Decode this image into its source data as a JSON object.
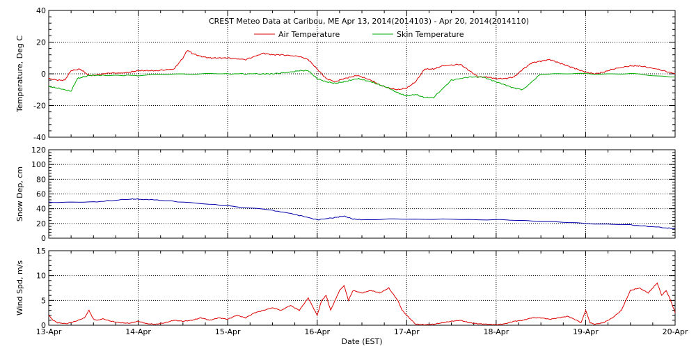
{
  "chart_data": {
    "type": "line",
    "title": "CREST Meteo Data at Caribou, ME   Apr 13, 2014(2014103) - Apr 20, 2014(2014110)",
    "xlabel": "Date (EST)",
    "x_ticks": [
      "13-Apr",
      "14-Apr",
      "15-Apr",
      "16-Apr",
      "17-Apr",
      "18-Apr",
      "19-Apr",
      "20-Apr"
    ],
    "grid": true,
    "panels": [
      {
        "id": "temperature",
        "ylabel": "Temperature, Deg C",
        "ylim": [
          -40,
          40
        ],
        "yticks": [
          -40,
          -20,
          0,
          20,
          40
        ],
        "legend_placement": "top-center",
        "series": [
          {
            "name": "Air Temperature",
            "color": "#dd0000",
            "x": [
              0,
              0.1,
              0.18,
              0.25,
              0.35,
              0.45,
              0.5,
              0.6,
              0.9,
              1.0,
              1.1,
              1.2,
              1.4,
              1.5,
              1.55,
              1.6,
              1.7,
              1.8,
              1.9,
              2.0,
              2.2,
              2.4,
              2.5,
              2.6,
              2.8,
              2.9,
              3.0,
              3.1,
              3.2,
              3.3,
              3.45,
              3.6,
              3.7,
              3.8,
              3.9,
              4.0,
              4.1,
              4.2,
              4.3,
              4.4,
              4.6,
              4.7,
              4.8,
              4.9,
              5.0,
              5.1,
              5.2,
              5.3,
              5.4,
              5.5,
              5.6,
              5.7,
              5.8,
              5.9,
              6.0,
              6.1,
              6.2,
              6.3,
              6.5,
              6.6,
              6.8,
              7.0
            ],
            "values": [
              -3,
              -4,
              -4,
              2,
              3,
              -1,
              -1,
              0,
              1,
              2,
              2,
              2,
              3,
              10,
              15,
              13,
              11,
              10,
              10,
              10,
              9,
              13,
              12,
              12,
              11,
              9,
              3,
              -3,
              -5,
              -3,
              -1,
              -4,
              -7,
              -9,
              -10,
              -9,
              -5,
              3,
              3,
              5,
              6,
              2,
              -2,
              -2,
              -3,
              -3,
              -2,
              3,
              7,
              8,
              9,
              7,
              5,
              3,
              1,
              0,
              1,
              3,
              5,
              5,
              3,
              0
            ]
          },
          {
            "name": "Skin Temperature",
            "color": "#00aa00",
            "x": [
              0,
              0.1,
              0.25,
              0.32,
              0.45,
              0.6,
              1.0,
              1.5,
              2.0,
              2.4,
              2.5,
              2.7,
              2.8,
              2.9,
              3.0,
              3.1,
              3.2,
              3.3,
              3.45,
              3.6,
              3.7,
              3.8,
              3.9,
              4.0,
              4.1,
              4.2,
              4.3,
              4.5,
              4.7,
              4.85,
              5.0,
              5.1,
              5.2,
              5.3,
              5.5,
              6.0,
              6.5,
              7.0
            ],
            "values": [
              -8,
              -9,
              -11,
              -3,
              -1,
              -1,
              -1,
              0,
              0,
              0,
              0,
              1,
              2,
              2,
              -3,
              -5,
              -6,
              -5,
              -3,
              -5,
              -7,
              -9,
              -12,
              -14,
              -13,
              -15,
              -15,
              -4,
              -2,
              -2,
              -5,
              -7,
              -9,
              -10,
              0,
              0,
              0,
              -2
            ]
          }
        ]
      },
      {
        "id": "snow_depth",
        "ylabel": "Snow Dep, cm",
        "ylim": [
          0,
          120
        ],
        "yticks": [
          0,
          20,
          40,
          60,
          80,
          100,
          120
        ],
        "series": [
          {
            "name": "",
            "color": "#0000aa",
            "x": [
              0,
              0.5,
              0.9,
              1.0,
              1.3,
              2.0,
              2.5,
              2.8,
              3.0,
              3.2,
              3.3,
              3.4,
              3.5,
              4.0,
              5.0,
              5.5,
              6.0,
              6.5,
              6.9,
              7.0
            ],
            "values": [
              49,
              49,
              53,
              53,
              51,
              44,
              38,
              31,
              25,
              28,
              30,
              26,
              25,
              26,
              25,
              23,
              20,
              18,
              14,
              13
            ]
          }
        ]
      },
      {
        "id": "wind_speed",
        "ylabel": "Wind Spd, m/s",
        "ylim": [
          0,
          15
        ],
        "yticks": [
          0,
          5,
          10,
          15
        ],
        "series": [
          {
            "name": "",
            "color": "#dd0000",
            "x": [
              0,
              0.05,
              0.1,
              0.2,
              0.3,
              0.4,
              0.45,
              0.5,
              0.55,
              0.6,
              0.7,
              0.8,
              0.9,
              1.0,
              1.1,
              1.2,
              1.3,
              1.4,
              1.5,
              1.6,
              1.7,
              1.8,
              1.9,
              2.0,
              2.1,
              2.2,
              2.3,
              2.4,
              2.5,
              2.6,
              2.7,
              2.8,
              2.9,
              3.0,
              3.05,
              3.1,
              3.15,
              3.2,
              3.25,
              3.3,
              3.35,
              3.4,
              3.5,
              3.6,
              3.7,
              3.8,
              3.9,
              3.95,
              4.0,
              4.1,
              4.2,
              4.3,
              4.4,
              4.5,
              4.6,
              4.7,
              4.8,
              4.9,
              5.0,
              5.1,
              5.2,
              5.3,
              5.4,
              5.5,
              5.6,
              5.7,
              5.8,
              5.9,
              5.95,
              6.0,
              6.05,
              6.1,
              6.2,
              6.3,
              6.4,
              6.5,
              6.6,
              6.7,
              6.8,
              6.85,
              6.9,
              6.95,
              7.0
            ],
            "values": [
              2,
              1,
              0.5,
              0.3,
              0.8,
              1.5,
              3,
              1.2,
              1,
              1.3,
              0.8,
              0.5,
              0.4,
              0.8,
              0.3,
              0.2,
              0.5,
              1,
              0.8,
              1,
              1.5,
              1,
              1.5,
              1.2,
              2,
              1.5,
              2.5,
              3,
              3.5,
              3,
              4,
              3,
              5.5,
              2,
              5,
              6,
              3,
              5,
              7,
              8,
              5,
              7,
              6.5,
              7,
              6.5,
              7.5,
              5,
              3,
              2,
              0.2,
              0.1,
              0.2,
              0.5,
              0.8,
              1,
              0.5,
              0.3,
              0.2,
              0.1,
              0.3,
              0.8,
              1,
              1.5,
              1.5,
              1.2,
              1.5,
              1.8,
              1,
              0.5,
              3,
              0.5,
              0.2,
              0.5,
              1.5,
              3,
              7,
              7.5,
              6.5,
              8.5,
              6,
              7,
              5,
              2.5
            ]
          }
        ]
      }
    ]
  }
}
